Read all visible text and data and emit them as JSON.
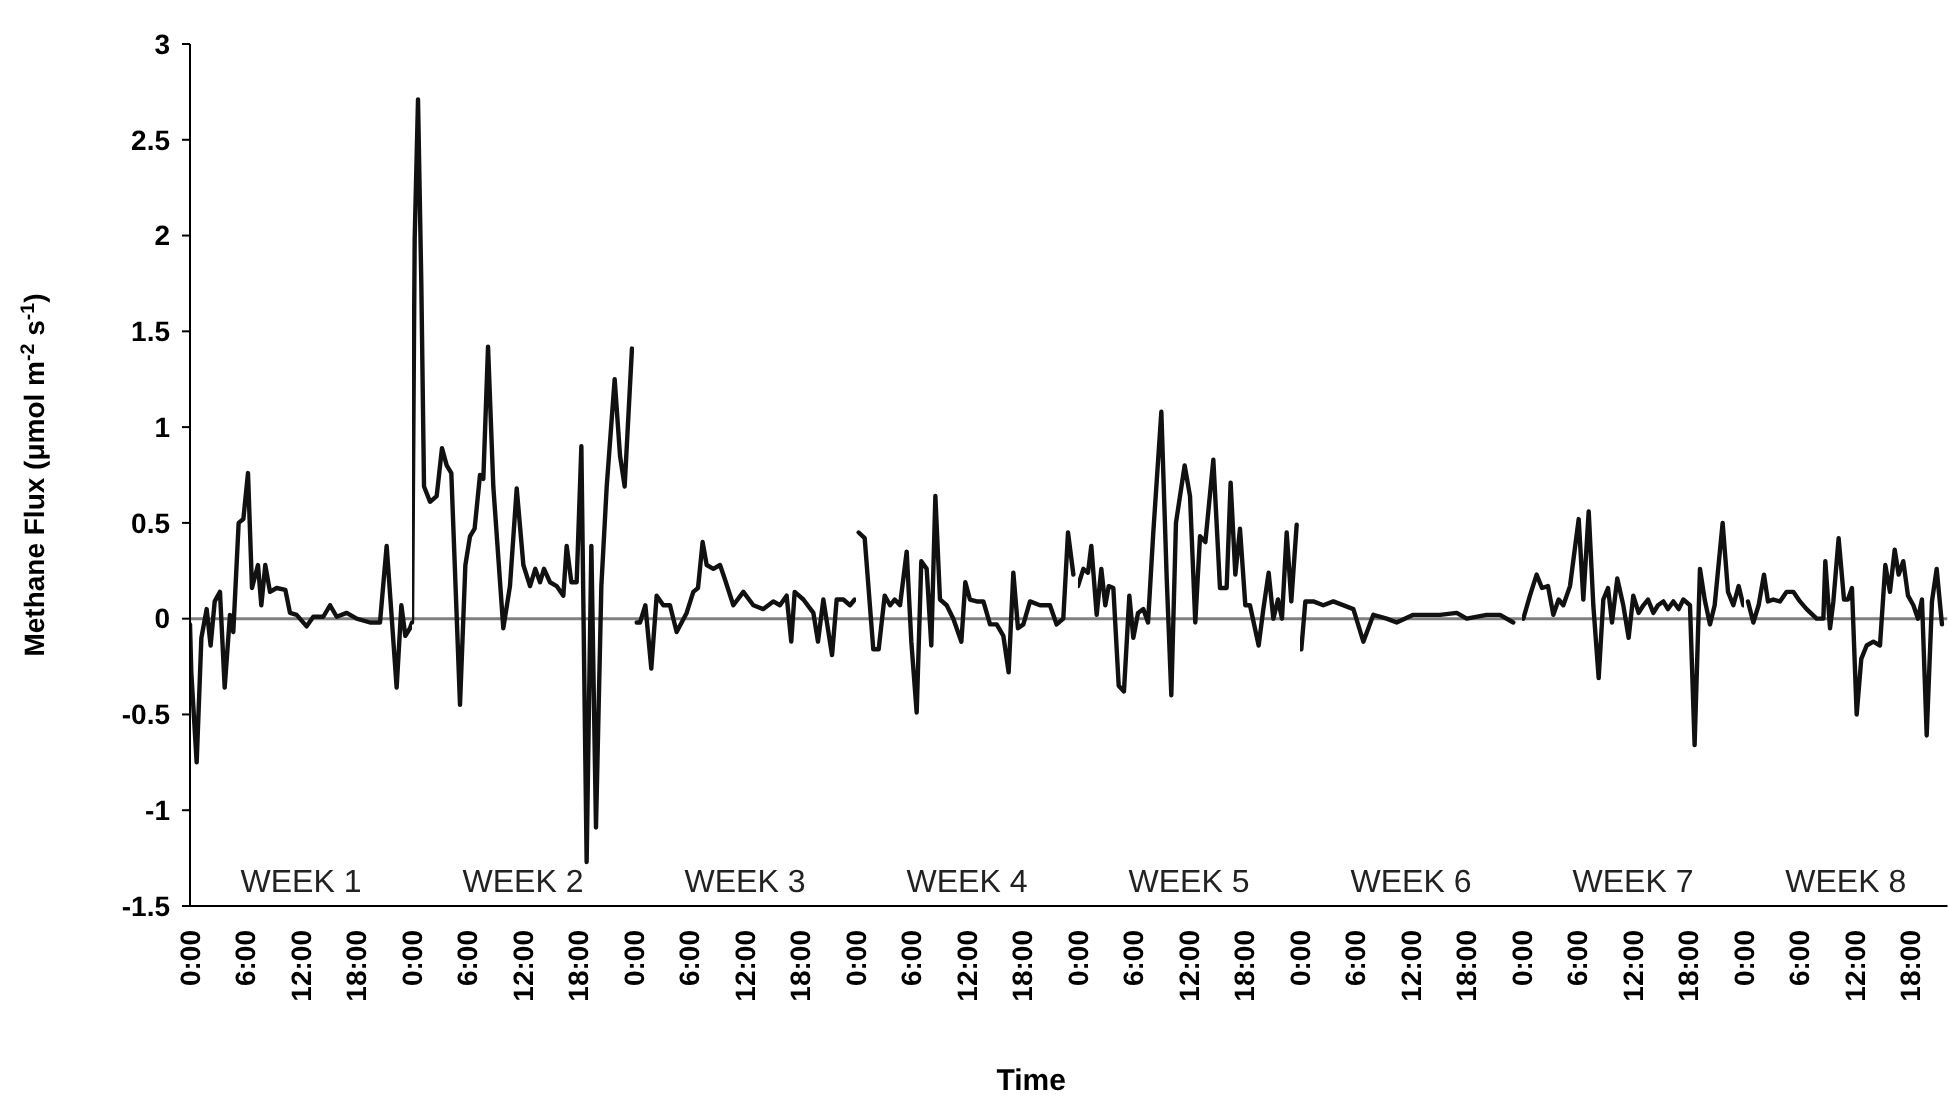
{
  "chart_data": [
    {
      "type": "line",
      "ylabel": "Methane Flux (μmol m$^{-2}$ s$^{-1}$)",
      "xlim": [
        0,
        24
      ],
      "ylim": [
        -1.5,
        3
      ],
      "xticks": [
        {
          "value": 0,
          "label": "0:00"
        },
        {
          "value": 6,
          "label": "6:00"
        },
        {
          "value": 12,
          "label": "12:00"
        },
        {
          "value": 18,
          "label": "18:00"
        }
      ],
      "yticks": [
        -1.5,
        -1,
        -0.5,
        0,
        0.5,
        1,
        1.5,
        2,
        2.5,
        3
      ],
      "ref_lines": [
        {
          "axis": "y",
          "value": 0,
          "color": "#808080"
        }
      ],
      "annotations": [
        "WEEK 1"
      ],
      "series": [
        {
          "color": "#111111",
          "x": [
            0,
            0.14,
            0.72,
            1.23,
            1.8,
            2.23,
            2.67,
            3.24,
            3.75,
            4.32,
            4.68,
            5.26,
            5.77,
            6.27,
            6.7,
            7.35,
            7.71,
            8.14,
            8.65,
            9.37,
            10.31,
            10.81,
            11.53,
            12.61,
            13.33,
            14.41,
            15.14,
            15.86,
            16.94,
            18.02,
            19.46,
            20.54,
            21.26,
            22.34,
            22.85,
            23.28,
            23.78,
            24
          ],
          "values": [
            -0.03,
            -0.28,
            -0.75,
            -0.1,
            0.05,
            -0.14,
            0.09,
            0.14,
            -0.36,
            0.02,
            -0.07,
            0.5,
            0.52,
            0.76,
            0.16,
            0.28,
            0.07,
            0.28,
            0.14,
            0.16,
            0.15,
            0.03,
            0.02,
            -0.04,
            0.01,
            0.01,
            0.07,
            0.01,
            0.03,
            0,
            -0.02,
            -0.02,
            0.38,
            -0.36,
            0.07,
            -0.09,
            -0.05,
            -0.02
          ]
        }
      ]
    },
    {
      "type": "line",
      "xlim": [
        0,
        24
      ],
      "ylim": [
        -1.5,
        3
      ],
      "xticks": [
        {
          "value": 0,
          "label": "0:00"
        },
        {
          "value": 6,
          "label": "6:00"
        },
        {
          "value": 12,
          "label": "12:00"
        },
        {
          "value": 18,
          "label": "18:00"
        }
      ],
      "yticks": [
        -1.5,
        -1,
        -0.5,
        0,
        0.5,
        1,
        1.5,
        2,
        2.5,
        3
      ],
      "tick_labels": "x",
      "ref_lines": [
        {
          "axis": "y",
          "value": 0,
          "color": "#808080"
        }
      ],
      "annotations": [
        "WEEK 2"
      ],
      "series": [
        {
          "color": "#111111",
          "x": [
            0,
            0.29,
            0.65,
            1.01,
            1.3,
            1.95,
            2.67,
            3.24,
            3.75,
            4.25,
            5.19,
            5.77,
            6.27,
            6.77,
            7.35,
            7.71,
            8.22,
            8.79,
            9.87,
            10.59,
            11.32,
            12.04,
            12.76,
            13.33,
            13.84,
            14.27,
            14.92,
            15.64,
            16.36,
            16.72,
            17.23,
            17.8,
            18.31,
            18.88,
            19.39,
            19.89,
            20.47,
            21.05,
            21.91,
            22.49,
            22.99,
            23.78
          ],
          "values": [
            -0.02,
            1.98,
            2.71,
            1.74,
            0.69,
            0.61,
            0.64,
            0.89,
            0.8,
            0.76,
            -0.45,
            0.28,
            0.43,
            0.47,
            0.75,
            0.73,
            1.42,
            0.69,
            -0.05,
            0.17,
            0.68,
            0.28,
            0.17,
            0.26,
            0.19,
            0.26,
            0.19,
            0.17,
            0.12,
            0.38,
            0.19,
            0.19,
            0.9,
            -1.27,
            0.38,
            -1.09,
            0.17,
            0.69,
            1.25,
            0.85,
            0.69,
            1.41
          ]
        }
      ]
    },
    {
      "type": "line",
      "xlim": [
        0,
        24
      ],
      "ylim": [
        -1.5,
        3
      ],
      "xticks": [
        {
          "value": 0,
          "label": "0:00"
        },
        {
          "value": 6,
          "label": "6:00"
        },
        {
          "value": 12,
          "label": "12:00"
        },
        {
          "value": 18,
          "label": "18:00"
        }
      ],
      "yticks": [
        -1.5,
        -1,
        -0.5,
        0,
        0.5,
        1,
        1.5,
        2,
        2.5,
        3
      ],
      "tick_labels": "x",
      "ref_lines": [
        {
          "axis": "y",
          "value": 0,
          "color": "#808080"
        }
      ],
      "annotations": [
        "WEEK 3"
      ],
      "series": [
        {
          "color": "#111111",
          "x": [
            0.29,
            0.65,
            1.23,
            1.87,
            2.45,
            3.17,
            3.89,
            4.61,
            5.69,
            6.41,
            6.92,
            7.42,
            7.86,
            8.58,
            9.3,
            9.8,
            10.74,
            11.82,
            12.9,
            13.98,
            15.06,
            15.78,
            16.5,
            17,
            17.37,
            18.31,
            19.39,
            19.89,
            20.47,
            21.41,
            21.91,
            22.63,
            23.35,
            23.86
          ],
          "values": [
            -0.02,
            -0.02,
            0.07,
            -0.26,
            0.12,
            0.07,
            0.07,
            -0.07,
            0.03,
            0.14,
            0.16,
            0.4,
            0.28,
            0.26,
            0.28,
            0.21,
            0.07,
            0.14,
            0.07,
            0.05,
            0.09,
            0.07,
            0.12,
            -0.12,
            0.14,
            0.1,
            0.03,
            -0.12,
            0.1,
            -0.19,
            0.1,
            0.1,
            0.07,
            0.1
          ]
        }
      ]
    },
    {
      "type": "line",
      "xlim": [
        0,
        24
      ],
      "ylim": [
        -1.5,
        3
      ],
      "xticks": [
        {
          "value": 0,
          "label": "0:00"
        },
        {
          "value": 6,
          "label": "6:00"
        },
        {
          "value": 12,
          "label": "12:00"
        },
        {
          "value": 18,
          "label": "18:00"
        }
      ],
      "yticks": [
        -1.5,
        -1,
        -0.5,
        0,
        0.5,
        1,
        1.5,
        2,
        2.5,
        3
      ],
      "tick_labels": "x",
      "xlabel": "Time",
      "ref_lines": [
        {
          "axis": "y",
          "value": 0,
          "color": "#808080"
        }
      ],
      "annotations": [
        "WEEK 4"
      ],
      "series": [
        {
          "color": "#111111",
          "x": [
            0.29,
            0.94,
            1.87,
            2.45,
            3.1,
            3.68,
            4.18,
            4.76,
            5.48,
            5.98,
            6.56,
            7.06,
            7.64,
            8.14,
            8.58,
            9.08,
            9.8,
            10.52,
            11.39,
            11.82,
            12.32,
            13.05,
            13.77,
            14.49,
            15.21,
            15.93,
            16.5,
            17.01,
            17.51,
            18.09,
            18.81,
            19.89,
            20.97,
            21.69,
            22.41,
            22.92,
            23.5
          ],
          "values": [
            0.45,
            0.42,
            -0.16,
            -0.16,
            0.12,
            0.07,
            0.1,
            0.07,
            0.35,
            -0.12,
            -0.49,
            0.3,
            0.26,
            -0.14,
            0.64,
            0.1,
            0.07,
            0,
            -0.12,
            0.19,
            0.1,
            0.09,
            0.09,
            -0.03,
            -0.03,
            -0.09,
            -0.28,
            0.24,
            -0.05,
            -0.03,
            0.09,
            0.07,
            0.07,
            -0.03,
            0,
            0.45,
            0.23
          ]
        }
      ]
    },
    {
      "type": "line",
      "xlim": [
        0,
        24
      ],
      "ylim": [
        -1.5,
        3
      ],
      "xticks": [
        {
          "value": 0,
          "label": "0:00"
        },
        {
          "value": 6,
          "label": "6:00"
        },
        {
          "value": 12,
          "label": "12:00"
        },
        {
          "value": 18,
          "label": "18:00"
        }
      ],
      "yticks": [
        -1.5,
        -1,
        -0.5,
        0,
        0.5,
        1,
        1.5,
        2,
        2.5,
        3
      ],
      "tick_labels": "x",
      "ref_lines": [
        {
          "axis": "y",
          "value": 0,
          "color": "#808080"
        }
      ],
      "annotations": [
        "WEEK 5"
      ],
      "series": [
        {
          "color": "#111111",
          "x": [
            0,
            0.58,
            1.08,
            1.44,
            2.02,
            2.52,
            2.95,
            3.32,
            3.82,
            4.4,
            4.97,
            5.55,
            5.98,
            6.49,
            7.06,
            7.57,
            8.14,
            9.01,
            9.59,
            10.09,
            10.59,
            11.53,
            12.11,
            12.68,
            13.19,
            13.77,
            14.63,
            15.35,
            16.07,
            16.5,
            17.01,
            17.51,
            18.09,
            18.59,
            19.53,
            20.04,
            20.61,
            21.12,
            21.62,
            22.05,
            22.56,
            23.06,
            23.64
          ],
          "values": [
            0.17,
            0.26,
            0.24,
            0.38,
            0.02,
            0.26,
            0.07,
            0.17,
            0.16,
            -0.35,
            -0.38,
            0.12,
            -0.1,
            0.03,
            0.05,
            -0.02,
            0.45,
            1.08,
            0.21,
            -0.4,
            0.5,
            0.8,
            0.64,
            -0.02,
            0.43,
            0.4,
            0.83,
            0.16,
            0.16,
            0.71,
            0.23,
            0.47,
            0.07,
            0.07,
            -0.14,
            0.05,
            0.24,
            0,
            0.1,
            0,
            0.45,
            0.09,
            0.49
          ]
        }
      ]
    },
    {
      "type": "line",
      "xlim": [
        0,
        24
      ],
      "ylim": [
        -1.5,
        3
      ],
      "xticks": [
        {
          "value": 0,
          "label": "0:00"
        },
        {
          "value": 6,
          "label": "6:00"
        },
        {
          "value": 12,
          "label": "12:00"
        },
        {
          "value": 18,
          "label": "18:00"
        }
      ],
      "yticks": [
        -1.5,
        -1,
        -0.5,
        0,
        0.5,
        1,
        1.5,
        2,
        2.5,
        3
      ],
      "tick_labels": "x",
      "ref_lines": [
        {
          "axis": "y",
          "value": 0,
          "color": "#808080"
        }
      ],
      "annotations": [
        "WEEK 6"
      ],
      "series": [
        {
          "color": "#111111",
          "x": [
            0.14,
            0.58,
            1.44,
            2.52,
            3.6,
            5.77,
            6.85,
            7.93,
            9.37,
            10.45,
            12.25,
            15.14,
            16.94,
            18.02,
            20.18,
            21.62,
            23.06
          ],
          "values": [
            -0.16,
            0.09,
            0.09,
            0.07,
            0.09,
            0.05,
            -0.12,
            0.02,
            0,
            -0.02,
            0.02,
            0.02,
            0.03,
            0,
            0.02,
            0.02,
            -0.02
          ]
        }
      ]
    },
    {
      "type": "line",
      "xlim": [
        0,
        24
      ],
      "ylim": [
        -1.5,
        3
      ],
      "xticks": [
        {
          "value": 0,
          "label": "0:00"
        },
        {
          "value": 6,
          "label": "6:00"
        },
        {
          "value": 12,
          "label": "12:00"
        },
        {
          "value": 18,
          "label": "18:00"
        }
      ],
      "yticks": [
        -1.5,
        -1,
        -0.5,
        0,
        0.5,
        1,
        1.5,
        2,
        2.5,
        3
      ],
      "tick_labels": "x",
      "ref_lines": [
        {
          "axis": "y",
          "value": 0,
          "color": "#808080"
        }
      ],
      "annotations": [
        "WEEK 7"
      ],
      "series": [
        {
          "color": "#111111",
          "x": [
            0.14,
            0.86,
            1.58,
            2.16,
            2.81,
            3.39,
            3.96,
            4.47,
            5.19,
            6.13,
            6.63,
            7.21,
            7.71,
            8.29,
            8.79,
            9.3,
            9.73,
            10.3,
            10.95,
            11.53,
            12.03,
            12.61,
            13.12,
            13.62,
            14.2,
            14.7,
            15.28,
            15.78,
            16.36,
            16.94,
            17.44,
            18.16,
            18.66,
            19.24,
            19.75,
            20.32,
            20.83,
            21.69,
            22.27,
            22.85,
            23.42,
            23.93
          ],
          "values": [
            0,
            0.12,
            0.23,
            0.16,
            0.17,
            0.02,
            0.1,
            0.07,
            0.17,
            0.52,
            0.1,
            0.56,
            0.07,
            -0.31,
            0.1,
            0.16,
            -0.02,
            0.21,
            0.07,
            -0.1,
            0.12,
            0.03,
            0.07,
            0.1,
            0.03,
            0.07,
            0.09,
            0.05,
            0.09,
            0.05,
            0.1,
            0.07,
            -0.66,
            0.26,
            0.1,
            -0.03,
            0.07,
            0.5,
            0.14,
            0.07,
            0.17,
            0.07
          ]
        }
      ]
    },
    {
      "type": "line",
      "xlim": [
        0,
        22
      ],
      "ylim": [
        -1.5,
        3
      ],
      "xticks": [
        {
          "value": 0,
          "label": "0:00"
        },
        {
          "value": 6,
          "label": "6:00"
        },
        {
          "value": 12,
          "label": "12:00"
        },
        {
          "value": 18,
          "label": "18:00"
        }
      ],
      "yticks": [
        -1.5,
        -1,
        -0.5,
        0,
        0.5,
        1,
        1.5,
        2,
        2.5,
        3
      ],
      "tick_labels": "x",
      "ref_lines": [
        {
          "axis": "y",
          "value": 0,
          "color": "#808080"
        }
      ],
      "annotations": [
        "WEEK 8"
      ],
      "series": [
        {
          "color": "#111111",
          "x": [
            0.43,
            1.01,
            1.58,
            2.16,
            2.59,
            3.17,
            3.89,
            4.61,
            5.33,
            6.05,
            6.77,
            7.85,
            8.58,
            8.79,
            9.3,
            9.66,
            10.23,
            10.81,
            11.24,
            11.67,
            12.18,
            12.68,
            13.26,
            13.98,
            14.7,
            15.28,
            15.78,
            16.29,
            16.72,
            17.22,
            17.73,
            18.31,
            18.81,
            19.24,
            19.75,
            20.32,
            20.83,
            21.4
          ],
          "values": [
            0.09,
            -0.02,
            0.07,
            0.23,
            0.09,
            0.1,
            0.09,
            0.14,
            0.14,
            0.09,
            0.05,
            0,
            0,
            0.3,
            -0.05,
            0.09,
            0.42,
            0.1,
            0.1,
            0.16,
            -0.5,
            -0.21,
            -0.14,
            -0.12,
            -0.14,
            0.28,
            0.14,
            0.36,
            0.23,
            0.3,
            0.12,
            0.07,
            0,
            0.1,
            -0.61,
            0.09,
            0.26,
            -0.03
          ]
        }
      ]
    }
  ]
}
